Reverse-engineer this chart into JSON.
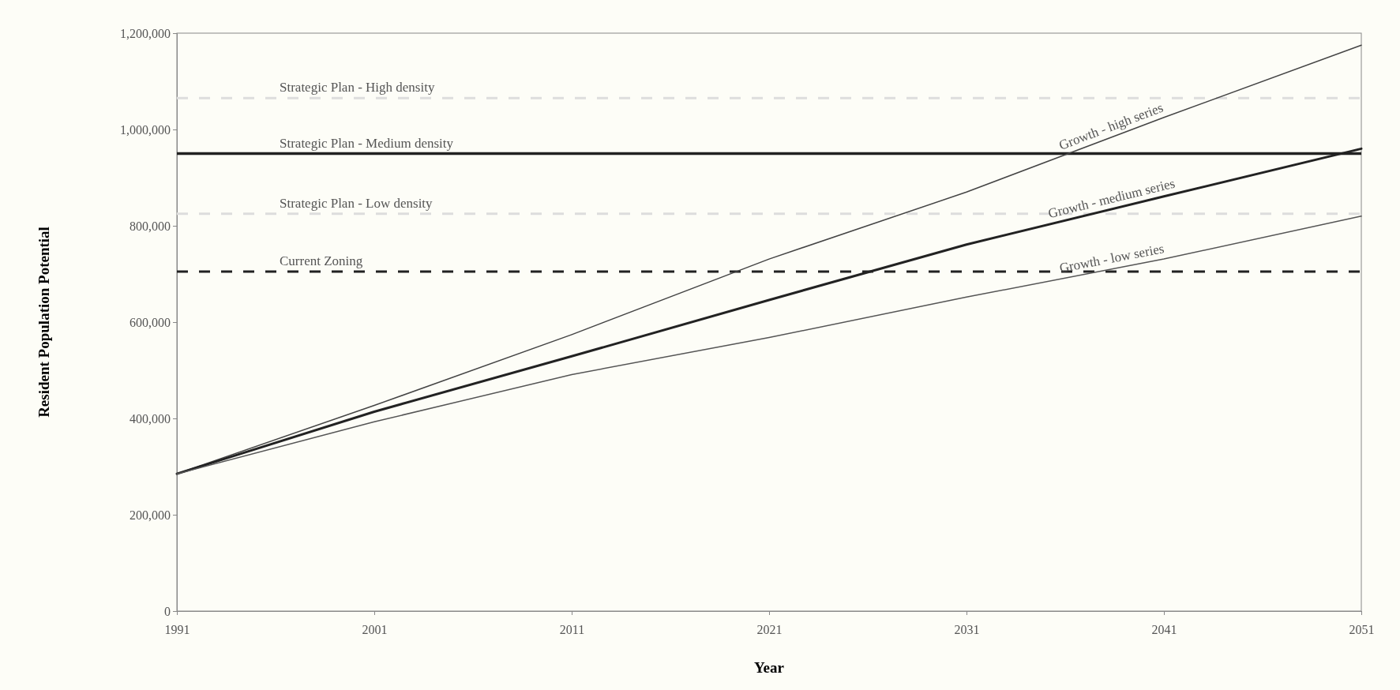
{
  "chart_data": {
    "type": "line",
    "xlabel": "Year",
    "ylabel": "Resident Population Potential",
    "x": [
      1991,
      2001,
      2011,
      2021,
      2031,
      2041,
      2051
    ],
    "series": [
      {
        "name": "Growth - high series",
        "color": "#444444",
        "values": [
          285000,
          427000,
          574000,
          731000,
          870000,
          1025000,
          1175000
        ]
      },
      {
        "name": "Growth - medium series",
        "color": "#222222",
        "values": [
          285000,
          414000,
          529000,
          646000,
          761000,
          861000,
          960000
        ]
      },
      {
        "name": "Growth - low series",
        "color": "#555555",
        "values": [
          285000,
          393000,
          491000,
          568000,
          652000,
          731000,
          820000
        ]
      }
    ],
    "xlim": [
      1991,
      2051
    ],
    "xticks": [
      1991,
      2001,
      2011,
      2021,
      2031,
      2041,
      2051
    ],
    "ylim": [
      0,
      1200000
    ],
    "yticks": [
      {
        "value": 0,
        "label": "0"
      },
      {
        "value": 200000,
        "label": "200,000"
      },
      {
        "value": 400000,
        "label": "400,000"
      },
      {
        "value": 600000,
        "label": "600,000"
      },
      {
        "value": 800000,
        "label": "800,000"
      },
      {
        "value": 1000000,
        "label": "1,000,000"
      },
      {
        "value": 1200000,
        "label": "1,200,000"
      }
    ],
    "ref_lines": [
      {
        "axis": "y",
        "value": 1065000,
        "label": "Strategic Plan - High density",
        "color": "#dddddd",
        "line_style": "dashed"
      },
      {
        "axis": "y",
        "value": 950000,
        "label": "Strategic Plan - Medium density",
        "color": "#222222",
        "line_style": "solid"
      },
      {
        "axis": "y",
        "value": 825000,
        "label": "Strategic Plan - Low density",
        "color": "#dddddd",
        "line_style": "dashed"
      },
      {
        "axis": "y",
        "value": 705000,
        "label": "Current Zoning",
        "color": "#222222",
        "line_style": "dashed"
      }
    ],
    "grid": false,
    "legend": false,
    "marker": "none",
    "line_style": "solid"
  }
}
